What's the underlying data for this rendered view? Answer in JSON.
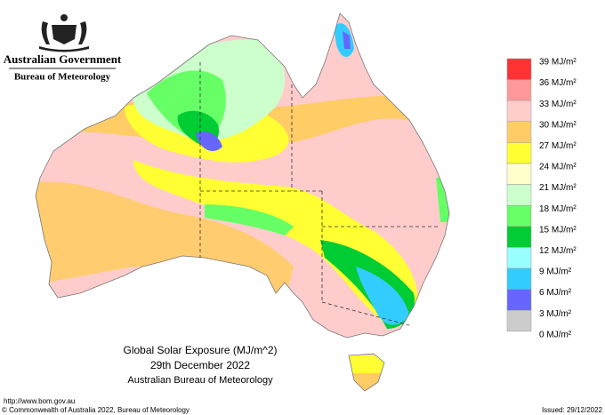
{
  "header": {
    "government": "Australian Government",
    "agency": "Bureau of Meteorology"
  },
  "legend": {
    "labels": [
      "39 MJ/m²",
      "36 MJ/m²",
      "33 MJ/m²",
      "30 MJ/m²",
      "27 MJ/m²",
      "24 MJ/m²",
      "21 MJ/m²",
      "18 MJ/m²",
      "15 MJ/m²",
      "12 MJ/m²",
      "9 MJ/m²",
      "6 MJ/m²",
      "3 MJ/m²",
      "0 MJ/m²"
    ],
    "colors": [
      "#ff3333",
      "#ff9999",
      "#ffcccc",
      "#ffcc66",
      "#ffff33",
      "#ffffcc",
      "#ccffcc",
      "#66ff66",
      "#00cc33",
      "#99ffff",
      "#33ccff",
      "#6666ff",
      "#cccccc"
    ]
  },
  "caption": {
    "title": "Global Solar Exposure (MJ/m^2)",
    "date": "29th December 2022",
    "source": "Australian Bureau of Meteorology"
  },
  "footer": {
    "url": "http://www.bom.gov.au",
    "copyright": "© Commonwealth of Australia 2022, Bureau of Meteorology",
    "issued": "Issued: 29/12/2022"
  }
}
